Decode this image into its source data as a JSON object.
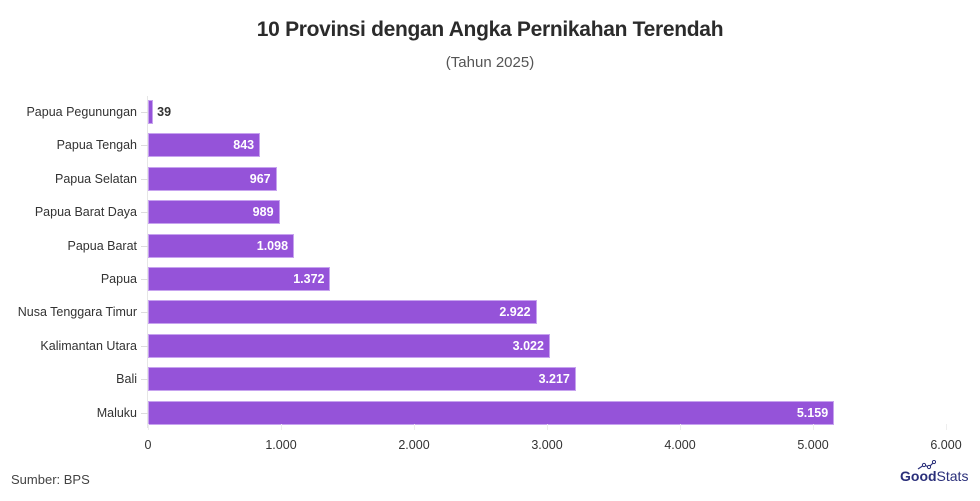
{
  "header": {
    "title": "10 Provinsi dengan Angka Pernikahan Terendah",
    "subtitle": "(Tahun 2025)"
  },
  "footer": {
    "source": "Sumber: BPS",
    "logo_bold": "Good",
    "logo_light": "Stats"
  },
  "colors": {
    "bar": "#9553d9",
    "bar_border": "#c7a3ef",
    "logo": "#2a2f7a"
  },
  "bars": [
    {
      "label": "Papua Pegunungan",
      "value_label": "39"
    },
    {
      "label": "Papua Tengah",
      "value_label": "843"
    },
    {
      "label": "Papua Selatan",
      "value_label": "967"
    },
    {
      "label": "Papua Barat Daya",
      "value_label": "989"
    },
    {
      "label": "Papua Barat",
      "value_label": "1.098"
    },
    {
      "label": "Papua",
      "value_label": "1.372"
    },
    {
      "label": "Nusa Tenggara Timur",
      "value_label": "2.922"
    },
    {
      "label": "Kalimantan Utara",
      "value_label": "3.022"
    },
    {
      "label": "Bali",
      "value_label": "3.217"
    },
    {
      "label": "Maluku",
      "value_label": "5.159"
    }
  ],
  "x_ticks": [
    "0",
    "1.000",
    "2.000",
    "3.000",
    "4.000",
    "5.000",
    "6.000"
  ],
  "chart_data": {
    "type": "bar",
    "orientation": "horizontal",
    "title": "10 Provinsi dengan Angka Pernikahan Terendah",
    "subtitle": "(Tahun 2025)",
    "categories": [
      "Papua Pegunungan",
      "Papua Tengah",
      "Papua Selatan",
      "Papua Barat Daya",
      "Papua Barat",
      "Papua",
      "Nusa Tenggara Timur",
      "Kalimantan Utara",
      "Bali",
      "Maluku"
    ],
    "values": [
      39,
      843,
      967,
      989,
      1098,
      1372,
      2922,
      3022,
      3217,
      5159
    ],
    "xlabel": "",
    "ylabel": "",
    "xlim": [
      0,
      6000
    ],
    "x_ticks": [
      0,
      1000,
      2000,
      3000,
      4000,
      5000,
      6000
    ],
    "x_tick_labels": [
      "0",
      "1.000",
      "2.000",
      "3.000",
      "4.000",
      "5.000",
      "6.000"
    ],
    "grid": false,
    "data_labels": true,
    "legend": null,
    "source": "Sumber: BPS"
  }
}
